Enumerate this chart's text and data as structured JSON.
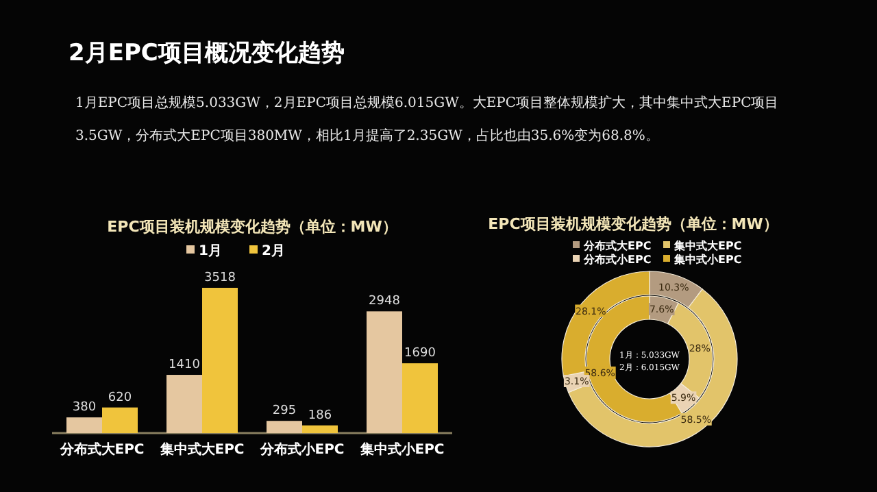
{
  "chart_data": [
    {
      "type": "bar",
      "title": "EPC项目装机规模变化趋势（单位：MW）",
      "categories": [
        "分布式大EPC",
        "集中式大EPC",
        "分布式小EPC",
        "集中式小EPC"
      ],
      "series": [
        {
          "name": "1月",
          "color": "#e5c7a0",
          "values": [
            380,
            1410,
            295,
            2948
          ]
        },
        {
          "name": "2月",
          "color": "#f0c43c",
          "values": [
            620,
            3518,
            186,
            1690
          ]
        }
      ],
      "data_labels": true,
      "legend": "top",
      "annotations": [
        "2月EPC项目概况变化趋势",
        "1月EPC项目总规模5.033GW，2月EPC项目总规模6.015GW。大EPC项目整体规模扩大，其中集中式大EPC项目3.5GW，分布式大EPC项目380MW，相比1月提高了2.35GW，占比也由35.6%变为68.8%。"
      ]
    },
    {
      "type": "donut",
      "title": "EPC项目装机规模变化趋势（单位：MW）",
      "categories": [
        "分布式大EPC",
        "集中式大EPC",
        "分布式小EPC",
        "集中式小EPC"
      ],
      "colors": [
        "#b39b80",
        "#e2c46a",
        "#ead3b4",
        "#d9ad2e"
      ],
      "series": [
        {
          "values": [
            7.6,
            28,
            5.9,
            58.6
          ],
          "value_labels": [
            "7.6%",
            "28%",
            "5.9%",
            "58.6%"
          ]
        },
        {
          "values": [
            10.3,
            58.5,
            3.1,
            28.1
          ],
          "value_labels": [
            "10.3%",
            "58.5%",
            "3.1%",
            "28.1%"
          ]
        }
      ],
      "legend": "top",
      "annotations": [
        "1月：5.033GW",
        "2月：6.015GW"
      ]
    }
  ]
}
